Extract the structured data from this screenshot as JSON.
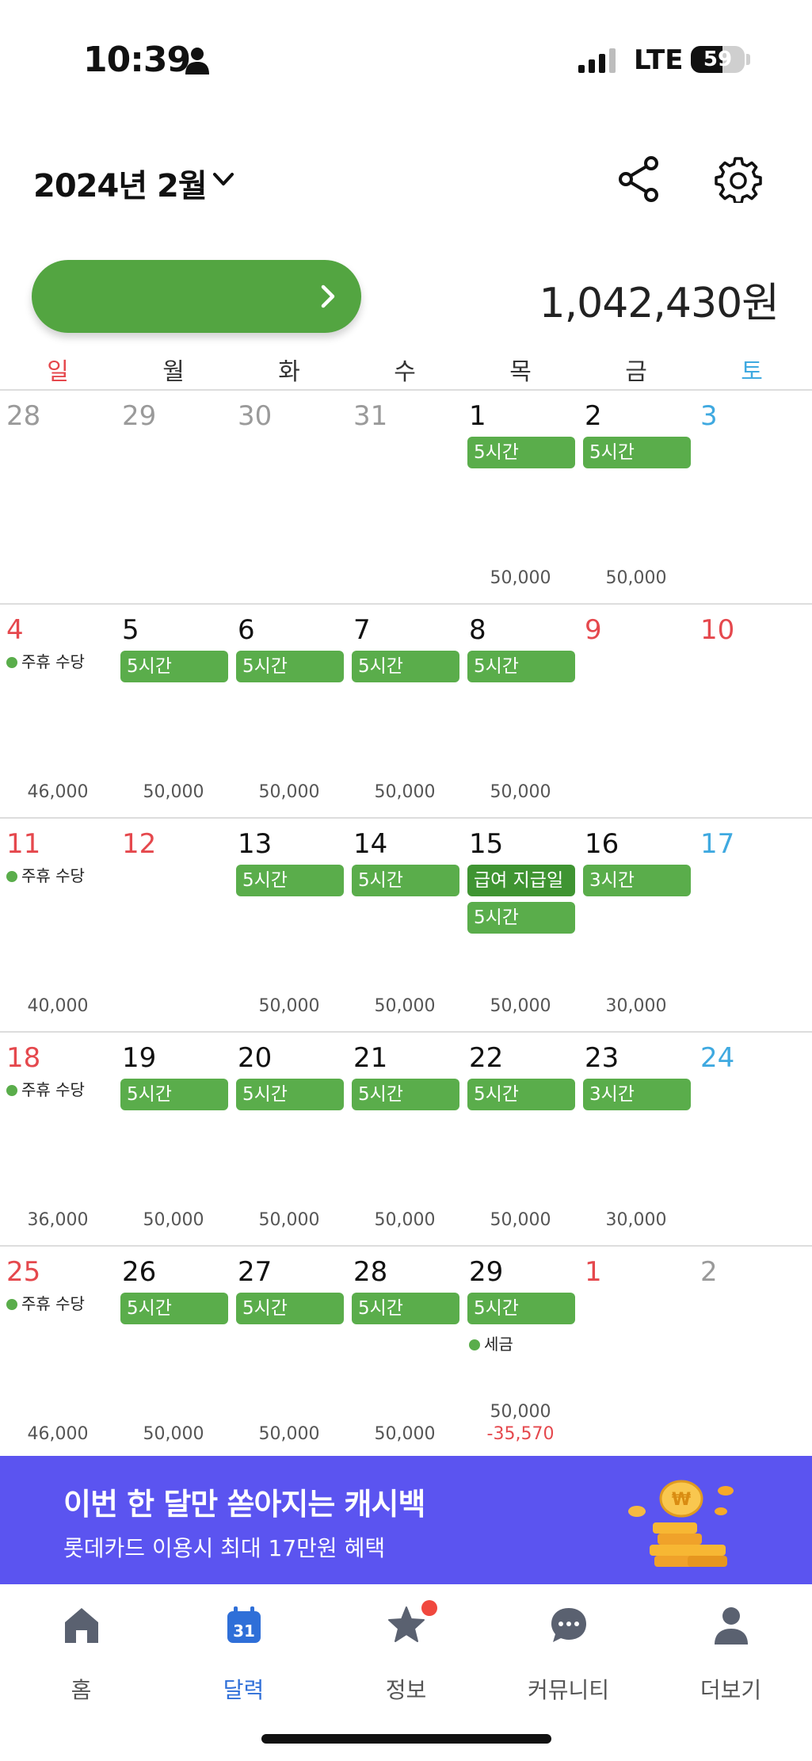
{
  "status_bar": {
    "time": "10:39",
    "network": "LTE",
    "battery": "59",
    "battery_fraction": 0.59
  },
  "header": {
    "month_title": "2024년 2월"
  },
  "summary": {
    "total_amount": "1,042,430원"
  },
  "weekdays": [
    "일",
    "월",
    "화",
    "수",
    "목",
    "금",
    "토"
  ],
  "calendar": {
    "weeks": [
      {
        "days": [
          {
            "num": "28",
            "kind": "other",
            "chips": [],
            "amounts": []
          },
          {
            "num": "29",
            "kind": "other",
            "chips": [],
            "amounts": []
          },
          {
            "num": "30",
            "kind": "other",
            "chips": [],
            "amounts": []
          },
          {
            "num": "31",
            "kind": "other",
            "chips": [],
            "amounts": []
          },
          {
            "num": "1",
            "kind": "normal",
            "chips": [
              "5시간"
            ],
            "amounts": [
              "50,000"
            ]
          },
          {
            "num": "2",
            "kind": "normal",
            "chips": [
              "5시간"
            ],
            "amounts": [
              "50,000"
            ]
          },
          {
            "num": "3",
            "kind": "sat",
            "chips": [],
            "amounts": []
          }
        ]
      },
      {
        "days": [
          {
            "num": "4",
            "kind": "sun",
            "dot_label": "주휴 수당",
            "chips": [],
            "amounts": [
              "46,000"
            ]
          },
          {
            "num": "5",
            "kind": "normal",
            "chips": [
              "5시간"
            ],
            "amounts": [
              "50,000"
            ]
          },
          {
            "num": "6",
            "kind": "normal",
            "chips": [
              "5시간"
            ],
            "amounts": [
              "50,000"
            ]
          },
          {
            "num": "7",
            "kind": "normal",
            "chips": [
              "5시간"
            ],
            "amounts": [
              "50,000"
            ]
          },
          {
            "num": "8",
            "kind": "normal",
            "chips": [
              "5시간"
            ],
            "amounts": [
              "50,000"
            ]
          },
          {
            "num": "9",
            "kind": "sun",
            "chips": [],
            "amounts": []
          },
          {
            "num": "10",
            "kind": "sun",
            "chips": [],
            "amounts": []
          }
        ]
      },
      {
        "days": [
          {
            "num": "11",
            "kind": "sun",
            "dot_label": "주휴 수당",
            "chips": [],
            "amounts": [
              "40,000"
            ]
          },
          {
            "num": "12",
            "kind": "sun",
            "chips": [],
            "amounts": []
          },
          {
            "num": "13",
            "kind": "normal",
            "chips": [
              "5시간"
            ],
            "amounts": [
              "50,000"
            ]
          },
          {
            "num": "14",
            "kind": "normal",
            "chips": [
              "5시간"
            ],
            "amounts": [
              "50,000"
            ]
          },
          {
            "num": "15",
            "kind": "normal",
            "chips": [
              "급여 지급일",
              "5시간"
            ],
            "amounts": [
              "50,000"
            ]
          },
          {
            "num": "16",
            "kind": "normal",
            "chips": [
              "3시간"
            ],
            "amounts": [
              "30,000"
            ]
          },
          {
            "num": "17",
            "kind": "sat",
            "chips": [],
            "amounts": []
          }
        ]
      },
      {
        "days": [
          {
            "num": "18",
            "kind": "sun",
            "dot_label": "주휴 수당",
            "chips": [],
            "amounts": [
              "36,000"
            ]
          },
          {
            "num": "19",
            "kind": "normal",
            "chips": [
              "5시간"
            ],
            "amounts": [
              "50,000"
            ]
          },
          {
            "num": "20",
            "kind": "normal",
            "chips": [
              "5시간"
            ],
            "amounts": [
              "50,000"
            ]
          },
          {
            "num": "21",
            "kind": "normal",
            "chips": [
              "5시간"
            ],
            "amounts": [
              "50,000"
            ]
          },
          {
            "num": "22",
            "kind": "normal",
            "chips": [
              "5시간"
            ],
            "amounts": [
              "50,000"
            ]
          },
          {
            "num": "23",
            "kind": "normal",
            "chips": [
              "3시간"
            ],
            "amounts": [
              "30,000"
            ]
          },
          {
            "num": "24",
            "kind": "sat",
            "chips": [],
            "amounts": []
          }
        ]
      },
      {
        "days": [
          {
            "num": "25",
            "kind": "sun",
            "dot_label": "주휴 수당",
            "chips": [],
            "amounts": [
              "46,000"
            ]
          },
          {
            "num": "26",
            "kind": "normal",
            "chips": [
              "5시간"
            ],
            "amounts": [
              "50,000"
            ]
          },
          {
            "num": "27",
            "kind": "normal",
            "chips": [
              "5시간"
            ],
            "amounts": [
              "50,000"
            ]
          },
          {
            "num": "28",
            "kind": "normal",
            "chips": [
              "5시간"
            ],
            "amounts": [
              "50,000"
            ]
          },
          {
            "num": "29",
            "kind": "normal",
            "chips": [
              "5시간"
            ],
            "dot_label": "세금",
            "amounts": [
              "50,000",
              "-35,570"
            ]
          },
          {
            "num": "1",
            "kind": "sun",
            "chips": [],
            "amounts": []
          },
          {
            "num": "2",
            "kind": "other",
            "chips": [],
            "amounts": []
          }
        ]
      }
    ]
  },
  "banner": {
    "title": "이번 한 달만 쏟아지는 캐시백",
    "subtitle": "롯데카드 이용시 최대 17만원 혜택"
  },
  "tabs": [
    {
      "label": "홈",
      "icon": "home-icon"
    },
    {
      "label": "달력",
      "icon": "calendar-icon",
      "calendar_number": "31",
      "active": true
    },
    {
      "label": "정보",
      "icon": "star-icon",
      "badge": true
    },
    {
      "label": "커뮤니티",
      "icon": "chat-icon"
    },
    {
      "label": "더보기",
      "icon": "person-icon"
    }
  ],
  "colors": {
    "accent_green": "#53a541",
    "sunday_red": "#e5484d",
    "saturday_blue": "#3fa9e0",
    "banner_purple": "#5b54f0",
    "active_tab_blue": "#2f6fd8"
  }
}
